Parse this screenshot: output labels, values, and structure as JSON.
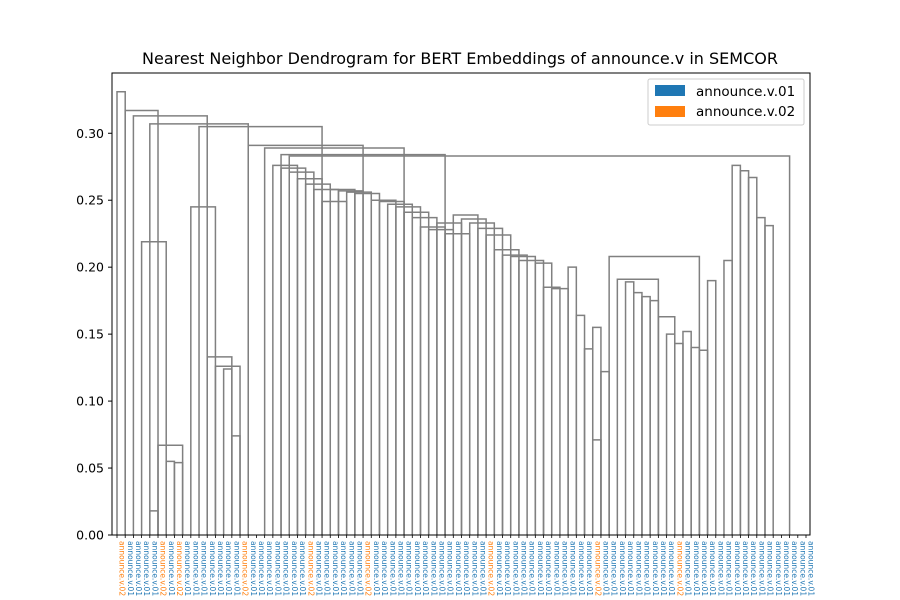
{
  "chart_data": {
    "type": "dendrogram",
    "title": "Nearest Neighbor Dendrogram for BERT Embeddings of announce.v in SEMCOR",
    "xlabel": "",
    "ylabel": "",
    "ylim": [
      0,
      0.345
    ],
    "yticks": [
      0.0,
      0.05,
      0.1,
      0.15,
      0.2,
      0.25,
      0.3
    ],
    "ytick_labels": [
      "0.00",
      "0.05",
      "0.10",
      "0.15",
      "0.20",
      "0.25",
      "0.30"
    ],
    "link_color": "#808080",
    "legend": {
      "placement": "top-right",
      "entries": [
        {
          "label": "announce.v.01",
          "color": "#1f77b4"
        },
        {
          "label": "announce.v.02",
          "color": "#ff7f0e"
        }
      ]
    },
    "leaf_label_texts": {
      "v01": "announce.v.01",
      "v02": "announce.v.02"
    },
    "leaf_senses": [
      "02",
      "01",
      "01",
      "01",
      "01",
      "02",
      "01",
      "02",
      "01",
      "01",
      "01",
      "01",
      "01",
      "01",
      "01",
      "02",
      "01",
      "01",
      "01",
      "01",
      "01",
      "01",
      "01",
      "02",
      "01",
      "01",
      "01",
      "01",
      "01",
      "01",
      "02",
      "01",
      "01",
      "01",
      "01",
      "01",
      "01",
      "01",
      "01",
      "01",
      "01",
      "01",
      "01",
      "01",
      "01",
      "02",
      "01",
      "01",
      "01",
      "01",
      "01",
      "01",
      "01",
      "01",
      "01",
      "01",
      "01",
      "01",
      "02",
      "01",
      "01",
      "01",
      "01",
      "01",
      "01",
      "01",
      "01",
      "01",
      "02",
      "01",
      "01",
      "01",
      "01",
      "01",
      "01",
      "01",
      "01",
      "01",
      "01",
      "01",
      "01",
      "01",
      "01",
      "01",
      "01"
    ],
    "merges": [
      [
        0.331,
        0,
        1
      ],
      [
        0.317,
        1,
        5
      ],
      [
        0.313,
        2,
        11
      ],
      [
        0.307,
        4,
        16
      ],
      [
        0.305,
        10,
        25
      ],
      [
        0.219,
        3,
        6
      ],
      [
        0.067,
        5,
        8
      ],
      [
        0.018,
        4,
        5
      ],
      [
        0.055,
        6,
        7
      ],
      [
        0.054,
        7,
        8
      ],
      [
        0.245,
        9,
        12
      ],
      [
        0.133,
        11,
        14
      ],
      [
        0.126,
        12,
        15
      ],
      [
        0.124,
        13,
        14
      ],
      [
        0.074,
        14,
        15
      ],
      [
        0.291,
        16,
        30
      ],
      [
        0.289,
        18,
        35
      ],
      [
        0.284,
        20,
        40
      ],
      [
        0.283,
        21,
        82
      ],
      [
        0.276,
        19,
        22
      ],
      [
        0.274,
        20,
        23
      ],
      [
        0.271,
        21,
        24
      ],
      [
        0.266,
        22,
        25
      ],
      [
        0.262,
        23,
        26
      ],
      [
        0.258,
        24,
        27
      ],
      [
        0.249,
        25,
        28
      ],
      [
        0.258,
        26,
        29
      ],
      [
        0.257,
        27,
        30
      ],
      [
        0.256,
        28,
        31
      ],
      [
        0.255,
        29,
        32
      ],
      [
        0.25,
        31,
        34
      ],
      [
        0.249,
        32,
        35
      ],
      [
        0.247,
        33,
        36
      ],
      [
        0.245,
        34,
        37
      ],
      [
        0.241,
        35,
        38
      ],
      [
        0.237,
        36,
        39
      ],
      [
        0.23,
        37,
        40
      ],
      [
        0.228,
        38,
        41
      ],
      [
        0.233,
        39,
        42
      ],
      [
        0.225,
        40,
        43
      ],
      [
        0.239,
        41,
        44
      ],
      [
        0.236,
        42,
        45
      ],
      [
        0.233,
        43,
        46
      ],
      [
        0.229,
        44,
        47
      ],
      [
        0.224,
        45,
        48
      ],
      [
        0.213,
        46,
        49
      ],
      [
        0.209,
        47,
        50
      ],
      [
        0.208,
        48,
        51
      ],
      [
        0.205,
        49,
        52
      ],
      [
        0.203,
        51,
        53
      ],
      [
        0.185,
        52,
        54
      ],
      [
        0.184,
        53,
        55
      ],
      [
        0.2,
        55,
        56
      ],
      [
        0.164,
        56,
        57
      ],
      [
        0.155,
        58,
        59
      ],
      [
        0.139,
        57,
        58
      ],
      [
        0.122,
        59,
        60
      ],
      [
        0.071,
        58,
        59
      ],
      [
        0.208,
        60,
        71
      ],
      [
        0.191,
        61,
        66
      ],
      [
        0.189,
        62,
        63
      ],
      [
        0.181,
        63,
        64
      ],
      [
        0.178,
        64,
        65
      ],
      [
        0.175,
        65,
        66
      ],
      [
        0.163,
        66,
        68
      ],
      [
        0.15,
        67,
        68
      ],
      [
        0.143,
        68,
        69
      ],
      [
        0.152,
        69,
        70
      ],
      [
        0.14,
        70,
        71
      ],
      [
        0.138,
        71,
        72
      ],
      [
        0.19,
        72,
        73
      ],
      [
        0.205,
        74,
        75
      ],
      [
        0.276,
        75,
        76
      ],
      [
        0.272,
        76,
        77
      ],
      [
        0.267,
        77,
        78
      ],
      [
        0.237,
        78,
        79
      ],
      [
        0.231,
        79,
        80
      ]
    ]
  }
}
